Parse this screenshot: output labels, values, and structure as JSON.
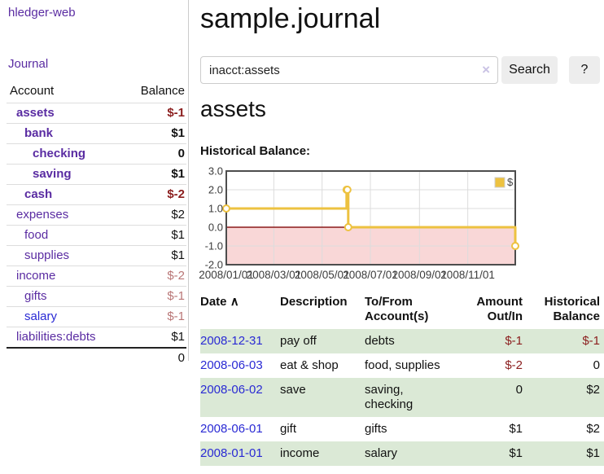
{
  "colors": {
    "link_purple": "#5a2ca2",
    "link_blue": "#2a2ad4",
    "negative_red": "#8b1e1e",
    "negative_muted": "#b97676",
    "row_stripe_green": "#dbe9d6",
    "chart_series_yellow": "#edc240",
    "chart_negative_region_pink": "#f9d7d7",
    "chart_zero_line_red": "#8b1a1a",
    "chart_border_gray": "#4d4d4d",
    "chart_grid_gray": "#dcdcdc"
  },
  "sidebar": {
    "brand": "hledger-web",
    "journal_link": "Journal",
    "accounts": {
      "col_account": "Account",
      "col_balance": "Balance",
      "rows": [
        {
          "name": "assets",
          "balance": "$-1",
          "indent": 0,
          "in_filter": true,
          "tone": "negative"
        },
        {
          "name": "bank",
          "balance": "$1",
          "indent": 1,
          "in_filter": true,
          "tone": "normal"
        },
        {
          "name": "checking",
          "balance": "0",
          "indent": 2,
          "in_filter": true,
          "tone": "normal"
        },
        {
          "name": "saving",
          "balance": "$1",
          "indent": 2,
          "in_filter": true,
          "tone": "normal"
        },
        {
          "name": "cash",
          "balance": "$-2",
          "indent": 1,
          "in_filter": true,
          "tone": "negative"
        },
        {
          "name": "expenses",
          "balance": "$2",
          "indent": 0,
          "in_filter": false,
          "tone": "normal"
        },
        {
          "name": "food",
          "balance": "$1",
          "indent": 1,
          "in_filter": false,
          "tone": "normal"
        },
        {
          "name": "supplies",
          "balance": "$1",
          "indent": 1,
          "in_filter": false,
          "tone": "normal"
        },
        {
          "name": "income",
          "balance": "$-2",
          "indent": 0,
          "in_filter": false,
          "tone": "negative-muted"
        },
        {
          "name": "gifts",
          "balance": "$-1",
          "indent": 1,
          "in_filter": false,
          "tone": "negative-muted"
        },
        {
          "name": "salary",
          "balance": "$-1",
          "indent": 1,
          "in_filter": false,
          "tone": "negative-muted",
          "link_style": "blue"
        },
        {
          "name": "liabilities:debts",
          "balance": "$1",
          "indent": 0,
          "in_filter": false,
          "tone": "normal"
        }
      ],
      "total": "0"
    }
  },
  "header": {
    "title": "sample.journal"
  },
  "search": {
    "value": "inacct:assets",
    "clear_icon": "×",
    "search_button": "Search",
    "help_button": "?"
  },
  "account_view": {
    "title": "assets",
    "section_label": "Historical Balance:"
  },
  "chart_data": {
    "type": "line",
    "style": "step",
    "title": "Historical Balance",
    "legend": [
      {
        "label": "$",
        "color": "#edc240"
      }
    ],
    "legend_position": "top-right",
    "x_range": [
      "2008-01-01",
      "2008-12-31"
    ],
    "x_tick_labels": [
      "2008/01/01",
      "2008/03/01",
      "2008/05/01",
      "2008/07/01",
      "2008/09/01",
      "2008/11/01"
    ],
    "y_tick_labels": [
      "3.0",
      "2.0",
      "1.0",
      "0.0",
      "-1.0",
      "-2.0"
    ],
    "ylim": [
      -2,
      3
    ],
    "grid": true,
    "negative_region_shaded": true,
    "series": [
      {
        "name": "$",
        "points": [
          {
            "date": "2008-01-01",
            "value": 1
          },
          {
            "date": "2008-06-01",
            "value": 2
          },
          {
            "date": "2008-06-02",
            "value": 2
          },
          {
            "date": "2008-06-03",
            "value": 0
          },
          {
            "date": "2008-12-31",
            "value": -1
          }
        ]
      }
    ]
  },
  "register_table": {
    "headers": {
      "date": "Date",
      "description": "Description",
      "accounts": "To/From Account(s)",
      "amount": "Amount Out/In",
      "balance": "Historical Balance"
    },
    "sort_icon": "∧",
    "rows": [
      {
        "date": "2008-12-31",
        "description": "pay off",
        "accounts": "debts",
        "amount": "$-1",
        "balance": "$-1"
      },
      {
        "date": "2008-06-03",
        "description": "eat & shop",
        "accounts": "food, supplies",
        "amount": "$-2",
        "balance": "0"
      },
      {
        "date": "2008-06-02",
        "description": "save",
        "accounts": "saving, checking",
        "amount": "0",
        "balance": "$2"
      },
      {
        "date": "2008-06-01",
        "description": "gift",
        "accounts": "gifts",
        "amount": "$1",
        "balance": "$2"
      },
      {
        "date": "2008-01-01",
        "description": "income",
        "accounts": "salary",
        "amount": "$1",
        "balance": "$1"
      }
    ]
  }
}
